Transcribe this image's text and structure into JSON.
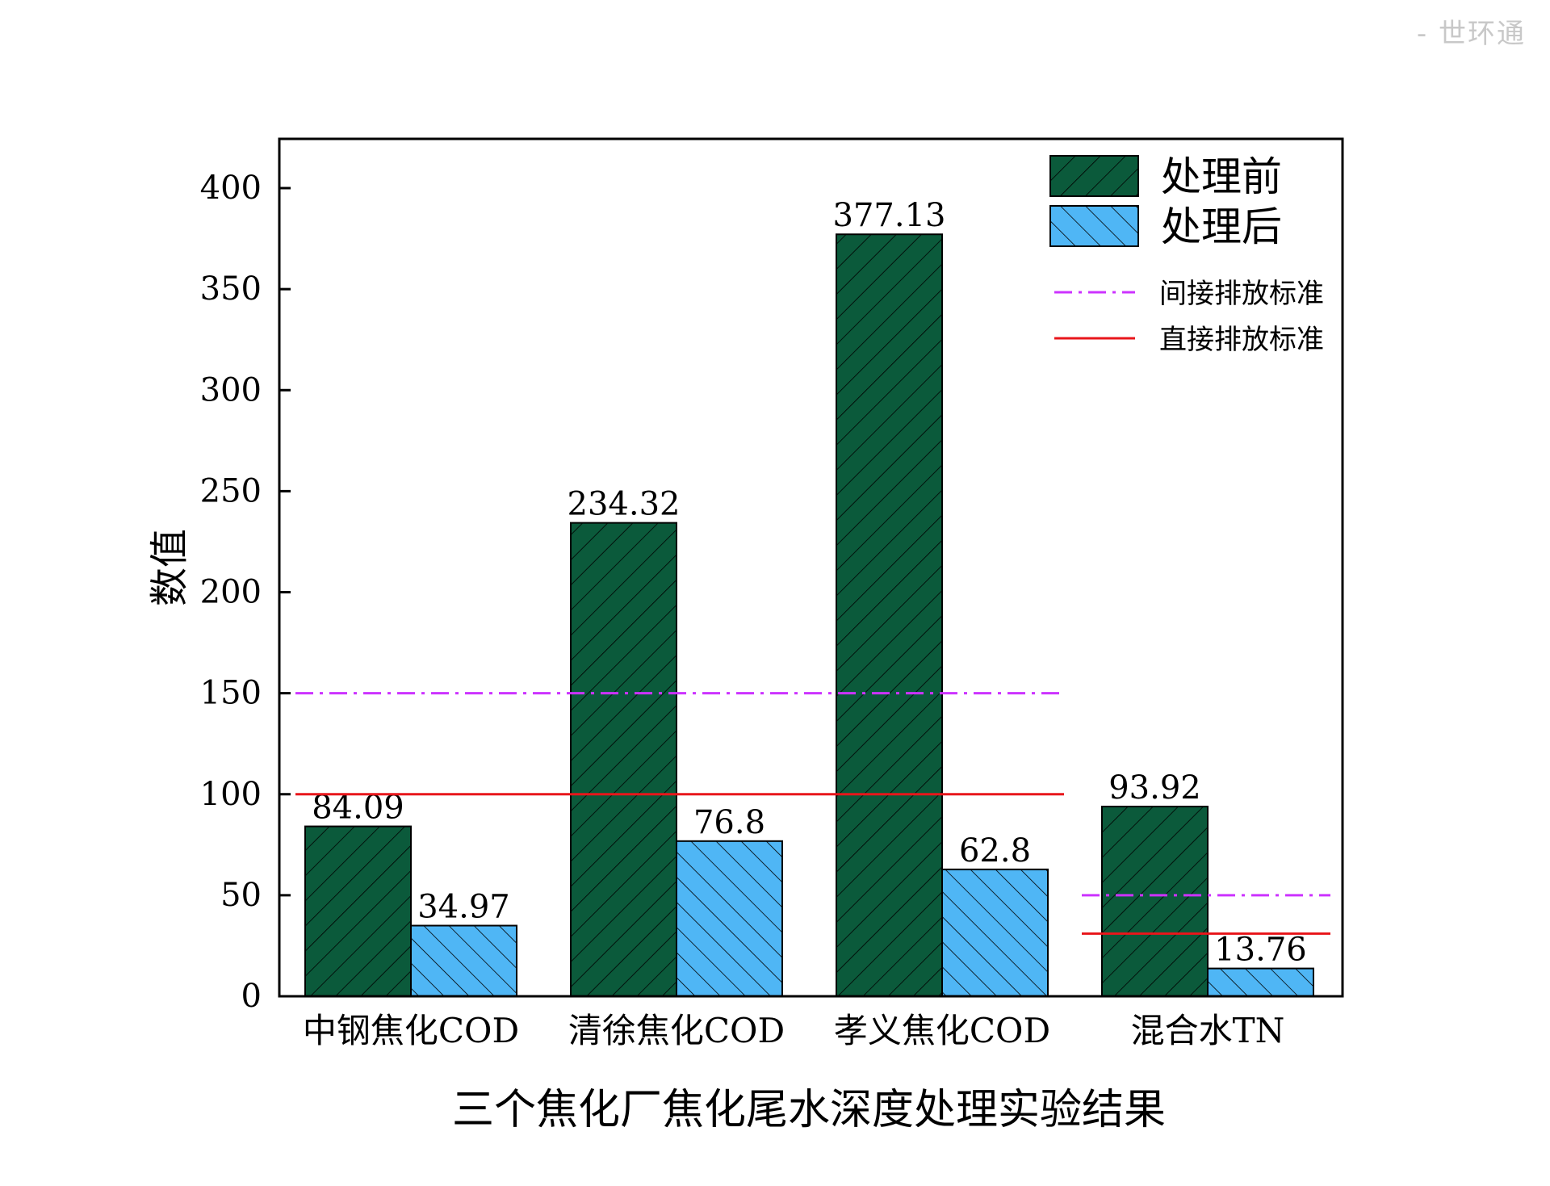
{
  "watermark": "- 世环通",
  "chart_data": {
    "type": "bar",
    "title": "三个焦化厂焦化尾水深度处理实验结果",
    "ylabel": "数值",
    "xlabel": "",
    "ylim": [
      0,
      425
    ],
    "yticks": [
      0,
      50,
      100,
      150,
      200,
      250,
      300,
      350,
      400
    ],
    "grid": false,
    "legend_position": "top-right",
    "categories": [
      "中钢焦化COD",
      "清徐焦化COD",
      "孝义焦化COD",
      "混合水TN"
    ],
    "series": [
      {
        "name": "处理前",
        "values": [
          84.09,
          234.32,
          377.13,
          93.92
        ],
        "value_labels": [
          "84.09",
          "234.32",
          "377.13",
          "93.92"
        ],
        "color": "#0b5a3b",
        "hatch": "forward-diagonal"
      },
      {
        "name": "处理后",
        "values": [
          34.97,
          76.8,
          62.8,
          13.76
        ],
        "value_labels": [
          "34.97",
          "76.8",
          "62.8",
          "13.76"
        ],
        "color": "#4fb6f5",
        "hatch": "back-diagonal"
      }
    ],
    "reference_lines": [
      {
        "name": "间接排放标准",
        "color": "#cc33ff",
        "style": "dash-dot",
        "segments": [
          {
            "y": 150,
            "from_category": 0,
            "to_category": 2
          },
          {
            "y": 50,
            "from_category": 3,
            "to_category": 3
          }
        ]
      },
      {
        "name": "直接排放标准",
        "color": "#e8161b",
        "style": "solid",
        "segments": [
          {
            "y": 100,
            "from_category": 0,
            "to_category": 2
          },
          {
            "y": 31,
            "from_category": 3,
            "to_category": 3
          }
        ]
      }
    ]
  }
}
